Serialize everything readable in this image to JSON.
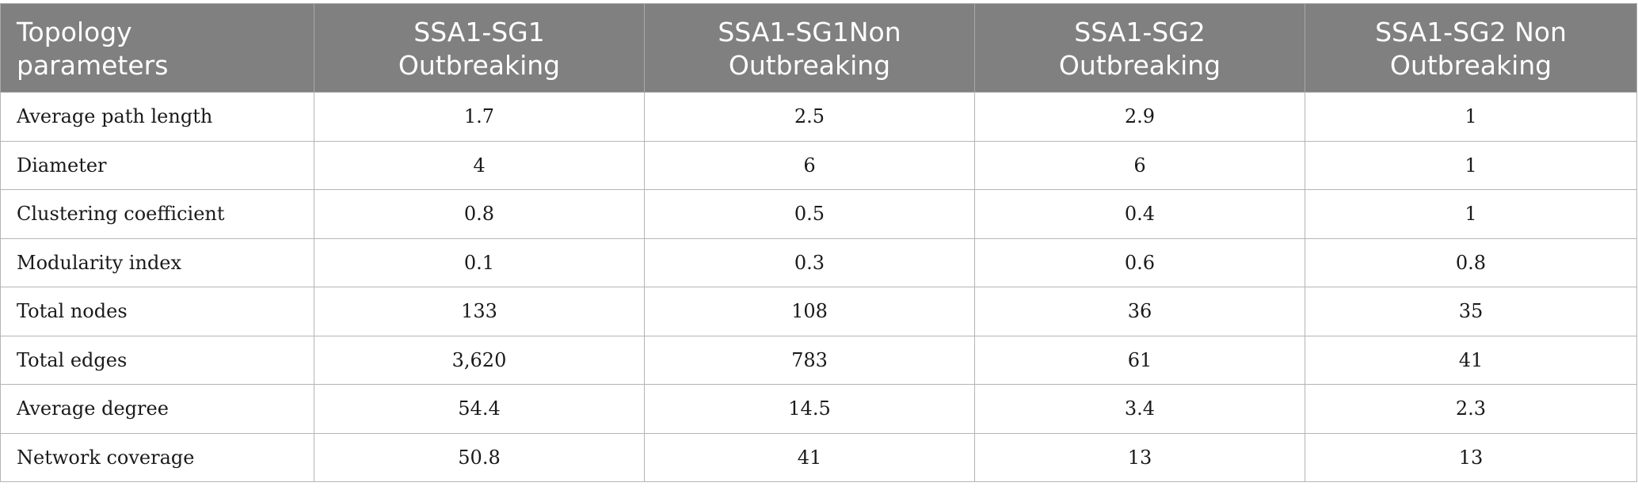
{
  "table": {
    "headers": [
      [
        "Topology",
        "parameters"
      ],
      [
        "SSA1-SG1",
        "Outbreaking"
      ],
      [
        "SSA1-SG1Non",
        "Outbreaking"
      ],
      [
        "SSA1-SG2",
        "Outbreaking"
      ],
      [
        "SSA1-SG2 Non",
        "Outbreaking"
      ]
    ],
    "rows": [
      [
        "Average path length",
        "1.7",
        "2.5",
        "2.9",
        "1"
      ],
      [
        "Diameter",
        "4",
        "6",
        "6",
        "1"
      ],
      [
        "Clustering coefficient",
        "0.8",
        "0.5",
        "0.4",
        "1"
      ],
      [
        "Modularity index",
        "0.1",
        "0.3",
        "0.6",
        "0.8"
      ],
      [
        "Total nodes",
        "133",
        "108",
        "36",
        "35"
      ],
      [
        "Total edges",
        "3,620",
        "783",
        "61",
        "41"
      ],
      [
        "Average degree",
        "54.4",
        "14.5",
        "3.4",
        "2.3"
      ],
      [
        "Network coverage",
        "50.8",
        "41",
        "13",
        "13"
      ]
    ],
    "colors": {
      "header_background": "#808080",
      "header_text": "#ffffff",
      "grid_line": "#b5b5b5"
    }
  }
}
